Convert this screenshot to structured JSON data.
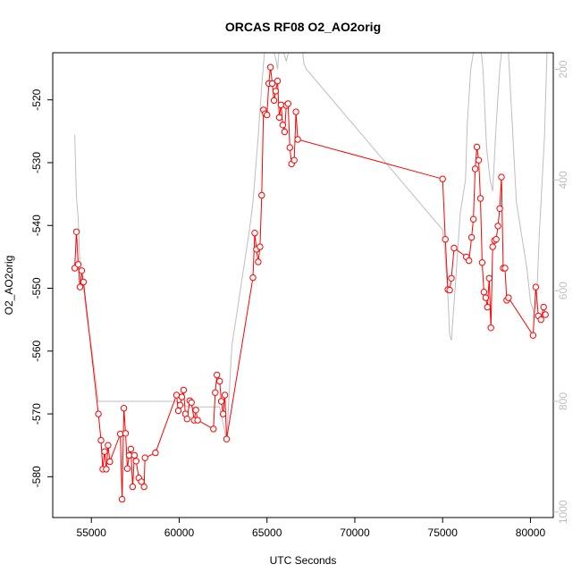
{
  "chart_data": {
    "type": "line",
    "title": "ORCAS RF08 O2_AO2orig",
    "xlabel": "UTC Seconds",
    "ylabel": "O2_AO2orig",
    "xlim": [
      52800,
      81300
    ],
    "ylim": [
      -586.5,
      -512.5
    ],
    "xticks": [
      55000,
      60000,
      65000,
      70000,
      75000,
      80000
    ],
    "yticks": [
      -580,
      -570,
      -560,
      -550,
      -540,
      -530,
      -520
    ],
    "y2lim": [
      1010,
      170
    ],
    "y2ticks": [
      200,
      400,
      600,
      800,
      1000
    ],
    "grid": false,
    "legend": "none",
    "colors": {
      "primary": "#ff0000",
      "secondary": "#bebebe"
    },
    "series": [
      {
        "role": "primary",
        "points": [
          [
            54050,
            -546.8
          ],
          [
            54150,
            -541.0
          ],
          [
            54250,
            -546.2
          ],
          [
            54350,
            -549.8
          ],
          [
            54450,
            -547.2
          ],
          [
            54550,
            -549.0
          ],
          [
            55400,
            -570.0
          ],
          [
            55550,
            -574.2
          ],
          [
            55650,
            -578.8
          ],
          [
            55750,
            -576.0
          ],
          [
            55850,
            -578.8
          ],
          [
            55950,
            -575.0
          ],
          [
            56050,
            -577.6
          ],
          [
            56650,
            -573.2
          ],
          [
            56750,
            -583.6
          ],
          [
            56850,
            -569.1
          ],
          [
            56950,
            -573.1
          ],
          [
            57050,
            -578.7
          ],
          [
            57150,
            -576.6
          ],
          [
            57250,
            -575.6
          ],
          [
            57350,
            -581.6
          ],
          [
            57450,
            -576.6
          ],
          [
            57550,
            -577.5
          ],
          [
            57700,
            -580.2
          ],
          [
            57850,
            -580.8
          ],
          [
            58000,
            -581.6
          ],
          [
            58050,
            -577.0
          ],
          [
            58650,
            -576.2
          ],
          [
            59850,
            -567.0
          ],
          [
            59950,
            -569.5
          ],
          [
            60050,
            -568.6
          ],
          [
            60150,
            -567.3
          ],
          [
            60250,
            -566.2
          ],
          [
            60350,
            -570.0
          ],
          [
            60450,
            -570.8
          ],
          [
            60600,
            -567.9
          ],
          [
            60700,
            -568.2
          ],
          [
            60850,
            -571.0
          ],
          [
            60950,
            -569.4
          ],
          [
            61050,
            -571.0
          ],
          [
            61950,
            -572.4
          ],
          [
            62050,
            -566.6
          ],
          [
            62150,
            -563.8
          ],
          [
            62300,
            -564.8
          ],
          [
            62400,
            -568.0
          ],
          [
            62500,
            -570.0
          ],
          [
            62600,
            -567.0
          ],
          [
            62700,
            -574.0
          ],
          [
            64200,
            -548.3
          ],
          [
            64300,
            -541.2
          ],
          [
            64400,
            -543.8
          ],
          [
            64500,
            -545.8
          ],
          [
            64600,
            -543.4
          ],
          [
            64700,
            -535.2
          ],
          [
            64800,
            -521.6
          ],
          [
            64900,
            -522.2
          ],
          [
            65000,
            -522.4
          ],
          [
            65100,
            -517.4
          ],
          [
            65200,
            -514.8
          ],
          [
            65300,
            -517.4
          ],
          [
            65400,
            -520.1
          ],
          [
            65500,
            -518.6
          ],
          [
            65600,
            -517.0
          ],
          [
            65700,
            -522.8
          ],
          [
            65800,
            -520.8
          ],
          [
            65900,
            -524.0
          ],
          [
            66000,
            -525.1
          ],
          [
            66100,
            -520.9
          ],
          [
            66200,
            -520.6
          ],
          [
            66300,
            -527.6
          ],
          [
            66400,
            -530.2
          ],
          [
            66550,
            -529.6
          ],
          [
            66650,
            -521.9
          ],
          [
            66750,
            -526.3
          ],
          [
            75000,
            -532.6
          ],
          [
            75150,
            -542.2
          ],
          [
            75300,
            -550.2
          ],
          [
            75400,
            -550.3
          ],
          [
            75500,
            -548.4
          ],
          [
            75650,
            -543.6
          ],
          [
            76350,
            -545.0
          ],
          [
            76500,
            -545.6
          ],
          [
            76650,
            -541.9
          ],
          [
            76750,
            -539.0
          ],
          [
            76850,
            -531.0
          ],
          [
            76950,
            -527.5
          ],
          [
            77050,
            -529.6
          ],
          [
            77150,
            -535.7
          ],
          [
            77250,
            -545.9
          ],
          [
            77350,
            -550.6
          ],
          [
            77450,
            -551.5
          ],
          [
            77550,
            -553.0
          ],
          [
            77650,
            -548.4
          ],
          [
            77750,
            -556.3
          ],
          [
            77850,
            -543.4
          ],
          [
            77950,
            -542.4
          ],
          [
            78050,
            -542.2
          ],
          [
            78150,
            -540.1
          ],
          [
            78250,
            -537.3
          ],
          [
            78350,
            -532.3
          ],
          [
            78450,
            -546.8
          ],
          [
            78550,
            -546.8
          ],
          [
            78650,
            -551.9
          ],
          [
            78750,
            -551.5
          ],
          [
            80150,
            -557.5
          ],
          [
            80300,
            -549.8
          ],
          [
            80450,
            -554.4
          ],
          [
            80600,
            -555.0
          ],
          [
            80750,
            -553.0
          ],
          [
            80850,
            -554.2
          ]
        ]
      },
      {
        "role": "secondary",
        "points": [
          [
            54050,
            318
          ],
          [
            54150,
            430
          ],
          [
            54250,
            470
          ],
          [
            54350,
            560
          ],
          [
            54500,
            580
          ],
          [
            54750,
            650
          ],
          [
            55000,
            700
          ],
          [
            55400,
            800
          ],
          [
            56000,
            800
          ],
          [
            57000,
            800
          ],
          [
            58000,
            800
          ],
          [
            58800,
            800
          ],
          [
            59300,
            800
          ],
          [
            59800,
            800
          ],
          [
            60500,
            810
          ],
          [
            61500,
            810
          ],
          [
            62000,
            810
          ],
          [
            62300,
            810
          ],
          [
            62700,
            870
          ],
          [
            63000,
            700
          ],
          [
            64000,
            490
          ],
          [
            64200,
            440
          ],
          [
            64500,
            320
          ],
          [
            64700,
            230
          ],
          [
            64850,
            170
          ],
          [
            65200,
            170
          ],
          [
            65400,
            170
          ],
          [
            65500,
            180
          ],
          [
            65600,
            200
          ],
          [
            65700,
            160
          ],
          [
            65850,
            160
          ],
          [
            66000,
            175
          ],
          [
            66100,
            185
          ],
          [
            66300,
            160
          ],
          [
            66500,
            140
          ],
          [
            66650,
            130
          ],
          [
            66800,
            150
          ],
          [
            66900,
            130
          ],
          [
            67100,
            190
          ],
          [
            67250,
            200
          ],
          [
            75000,
            490
          ],
          [
            75100,
            520
          ],
          [
            75300,
            610
          ],
          [
            75400,
            680
          ],
          [
            75500,
            690
          ],
          [
            75700,
            600
          ],
          [
            76000,
            460
          ],
          [
            76300,
            400
          ],
          [
            76400,
            300
          ],
          [
            76600,
            200
          ],
          [
            76900,
            140
          ],
          [
            77100,
            140
          ],
          [
            77300,
            200
          ],
          [
            77500,
            340
          ],
          [
            77700,
            400
          ],
          [
            77850,
            420
          ],
          [
            78050,
            300
          ],
          [
            78250,
            200
          ],
          [
            78450,
            140
          ],
          [
            78700,
            140
          ],
          [
            79200,
            440
          ],
          [
            79800,
            560
          ],
          [
            80000,
            620
          ],
          [
            80200,
            640
          ],
          [
            80350,
            620
          ],
          [
            80500,
            500
          ],
          [
            80800,
            320
          ],
          [
            80950,
            160
          ]
        ]
      }
    ]
  }
}
